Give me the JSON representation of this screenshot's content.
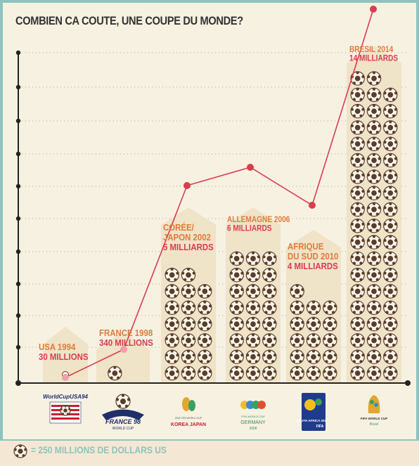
{
  "title": "COMBIEN CA COUTE, UNE COUPE DU MONDE?",
  "legend": "= 250 MILLIONS DE DOLLARS US",
  "colors": {
    "line": "#d93d4f",
    "year_label": "#e07b3c",
    "cost_label": "#d93d4f",
    "house": "#efe3c8",
    "ball": "#5a3d2b",
    "border": "#8dc4bf",
    "axis": "#222222"
  },
  "chart_data": {
    "type": "bar",
    "unit": "million USD",
    "ball_value": 250,
    "categories": [
      "USA 1994",
      "FRANCE 1998",
      "CORÉE/ JAPON 2002",
      "ALLEMAGNE 2006",
      "AFRIQUE DU SUD 2010",
      "BRÉSIL 2014"
    ],
    "values": [
      30,
      340,
      5000,
      6000,
      4000,
      14000
    ],
    "labels": [
      {
        "year": [
          "USA 1994"
        ],
        "cost": "30 MILLIONS"
      },
      {
        "year": [
          "FRANCE 1998"
        ],
        "cost": "340 MILLIONS"
      },
      {
        "year": [
          "CORÉE/",
          "JAPON 2002"
        ],
        "cost": "5 MILLIARDS"
      },
      {
        "year": [
          "ALLEMAGNE 2006"
        ],
        "cost": "6 MILLIARDS"
      },
      {
        "year": [
          "AFRIQUE",
          "DU SUD 2010"
        ],
        "cost": "4 MILLIARDS"
      },
      {
        "year": [
          "BRÉSIL 2014"
        ],
        "cost": "14 MILLIARDS"
      }
    ],
    "logos": [
      {
        "lines": [
          "WorldCupUSA94"
        ]
      },
      {
        "lines": [
          "FRANCE 98",
          "WORLD CUP"
        ]
      },
      {
        "lines": [
          "2002 FIFA WORLD CUP",
          "KOREA JAPAN"
        ]
      },
      {
        "lines": [
          "FIFA WORLD CUP",
          "GERMANY",
          "2006"
        ]
      },
      {
        "lines": [
          "SOUTH AFRICA 2010",
          "FIFA"
        ]
      },
      {
        "lines": [
          "FIFA WORLD CUP",
          "Brasil"
        ]
      }
    ]
  }
}
